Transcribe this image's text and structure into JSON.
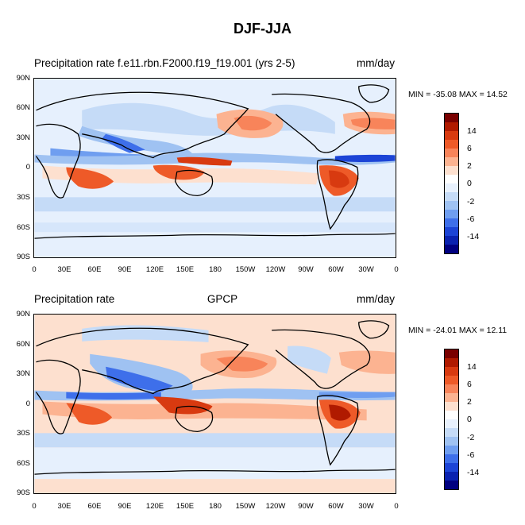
{
  "figure": {
    "title": "DJF-JJA"
  },
  "panels": [
    {
      "left_title": "Precipitation rate f.e11.rbn.F2000.f19_f19.001 (yrs 2-5)",
      "center_title": "",
      "units": "mm/day",
      "minmax": "MIN = -35.08 MAX =  14.52",
      "min": -35.08,
      "max": 14.52
    },
    {
      "left_title": "Precipitation rate",
      "center_title": "GPCP",
      "units": "mm/day",
      "minmax": "MIN = -24.01 MAX =  12.11",
      "min": -24.01,
      "max": 12.11
    }
  ],
  "axes": {
    "lat_labels": [
      "90N",
      "60N",
      "30N",
      "0",
      "30S",
      "60S",
      "90S"
    ],
    "lon_labels": [
      "0",
      "30E",
      "60E",
      "90E",
      "120E",
      "150E",
      "180",
      "150W",
      "120W",
      "90W",
      "60W",
      "30W",
      "0"
    ]
  },
  "colorbar": {
    "tick_labels": [
      "14",
      "6",
      "2",
      "0",
      "-2",
      "-6",
      "-14"
    ],
    "colors": [
      "#7a0000",
      "#b01a00",
      "#d83a10",
      "#ee5a28",
      "#f8845a",
      "#fcb391",
      "#fde0cf",
      "#ffffff",
      "#e8f1fd",
      "#c5dbf7",
      "#9fc2f2",
      "#6f9ef0",
      "#3e6fea",
      "#1c44d6",
      "#0a22b0",
      "#000080"
    ]
  },
  "chart_data": [
    {
      "type": "heatmap",
      "title": "Precipitation rate f.e11.rbn.F2000.f19_f19.001 (yrs 2-5)",
      "units": "mm/day",
      "season_difference": "DJF-JJA",
      "x_range": [
        "0",
        "360"
      ],
      "y_range": [
        "90S",
        "90N"
      ],
      "min": -35.08,
      "max": 14.52,
      "contour_levels": [
        -14,
        -6,
        -2,
        0,
        2,
        6,
        14
      ]
    },
    {
      "type": "heatmap",
      "title": "GPCP",
      "units": "mm/day",
      "season_difference": "DJF-JJA",
      "x_range": [
        "0",
        "360"
      ],
      "y_range": [
        "90S",
        "90N"
      ],
      "min": -24.01,
      "max": 12.11,
      "contour_levels": [
        -14,
        -6,
        -2,
        0,
        2,
        6,
        14
      ]
    }
  ]
}
